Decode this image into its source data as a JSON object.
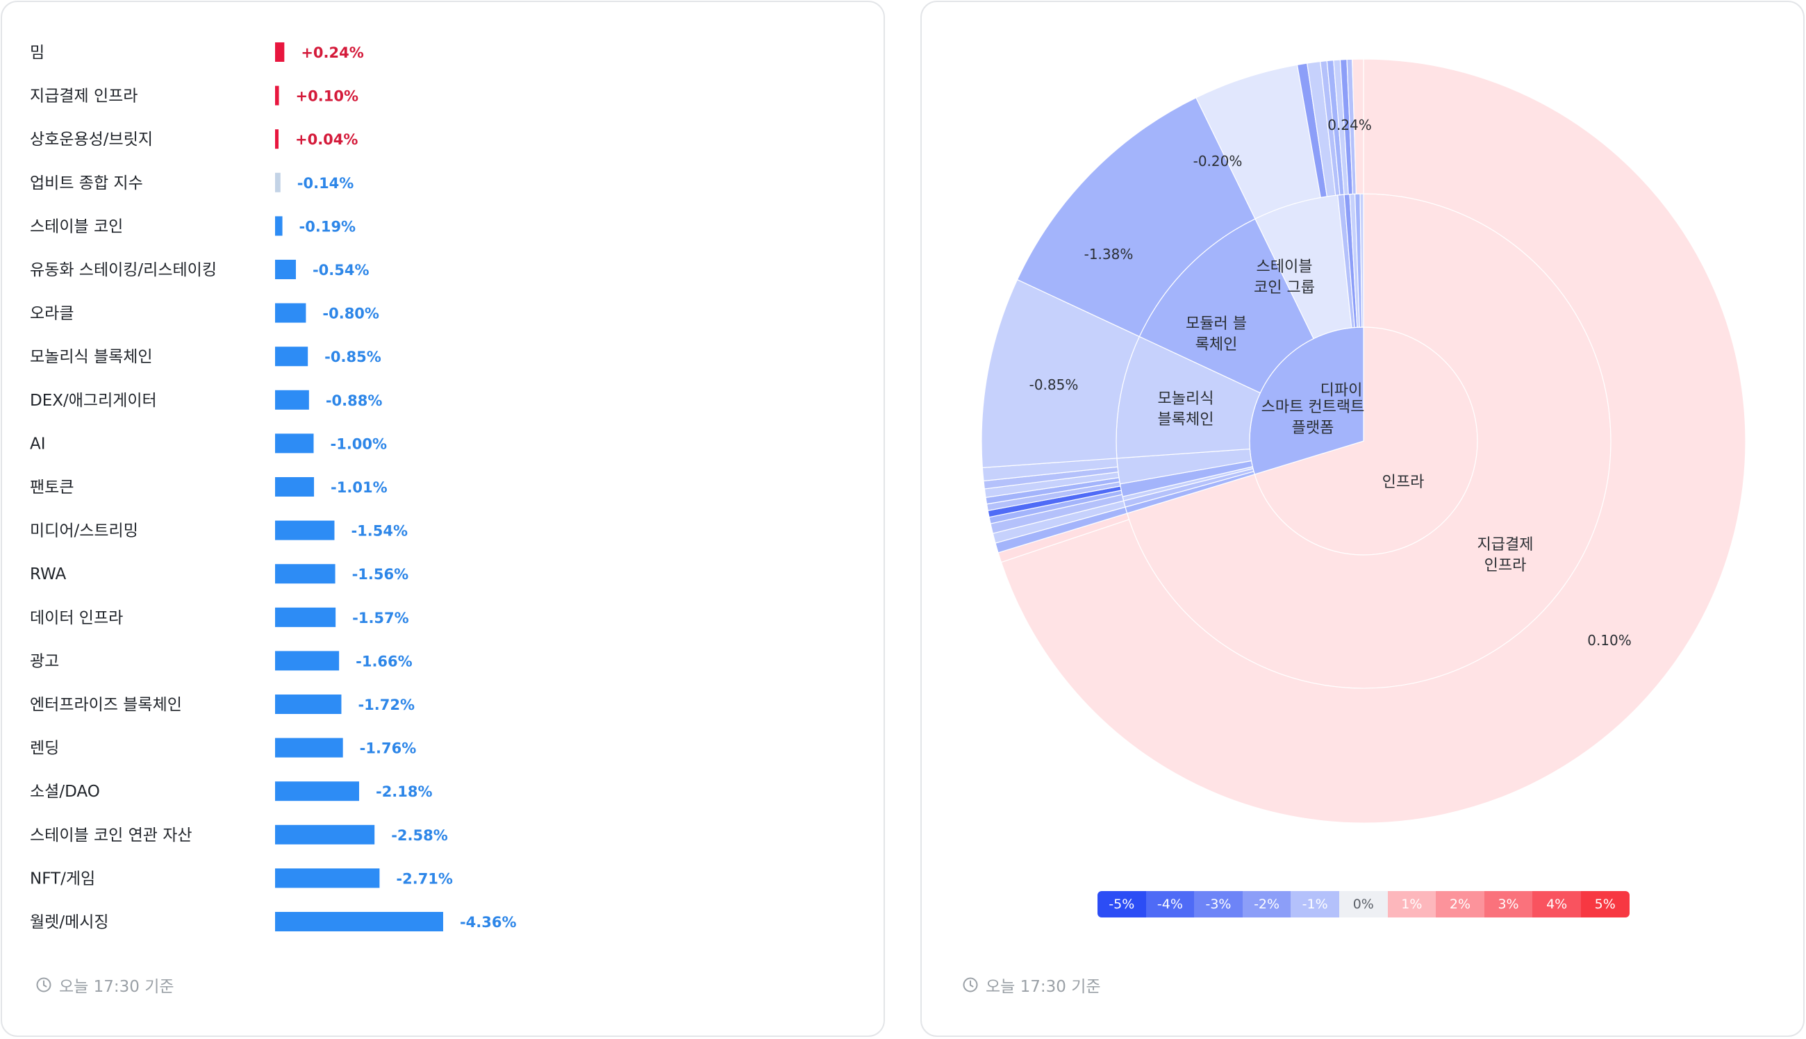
{
  "chart_data": [
    {
      "type": "bar",
      "orientation": "horizontal",
      "categories": [
        "밈",
        "지급결제 인프라",
        "상호운용성/브릿지",
        "업비트 종합 지수",
        "스테이블 코인",
        "유동화 스테이킹/리스테이킹",
        "오라클",
        "모놀리식 블록체인",
        "DEX/애그리게이터",
        "AI",
        "팬토큰",
        "미디어/스트리밍",
        "RWA",
        "데이터 인프라",
        "광고",
        "엔터프라이즈 블록체인",
        "렌딩",
        "소셜/DAO",
        "스테이블 코인 연관 자산",
        "NFT/게임",
        "월렛/메시징"
      ],
      "values": [
        0.24,
        0.1,
        0.04,
        -0.14,
        -0.19,
        -0.54,
        -0.8,
        -0.85,
        -0.88,
        -1.0,
        -1.01,
        -1.54,
        -1.56,
        -1.57,
        -1.66,
        -1.72,
        -1.76,
        -2.18,
        -2.58,
        -2.71,
        -4.36
      ],
      "value_labels": [
        "+0.24%",
        "+0.10%",
        "+0.04%",
        "-0.14%",
        "-0.19%",
        "-0.54%",
        "-0.80%",
        "-0.85%",
        "-0.88%",
        "-1.00%",
        "-1.01%",
        "-1.54%",
        "-1.56%",
        "-1.57%",
        "-1.66%",
        "-1.72%",
        "-1.76%",
        "-2.18%",
        "-2.58%",
        "-2.71%",
        "-4.36%"
      ],
      "colors": {
        "positive": "#e8163e",
        "negative": "#2d8cf5",
        "index": "#c3d3e6",
        "positive_text": "#d41a3a",
        "negative_text": "#2d86e8"
      }
    },
    {
      "type": "sunburst",
      "inner_ring": [
        {
          "name": "인프라",
          "share": 0.87,
          "color": "#ffe3e5"
        },
        {
          "name": "스마트 컨트랙트 플랫폼",
          "share": 0.13,
          "color": "#a3b4fb"
        }
      ],
      "middle_ring": [
        {
          "name": "지급결제 인프라",
          "parent": "인프라",
          "color": "#ffe3e5"
        },
        {
          "name": "모놀리식 블록체인",
          "parent": "스마트 컨트랙트 플랫폼",
          "color": "#c6d1fc"
        },
        {
          "name": "모듈러 블록체인",
          "parent": "스마트 컨트랙트 플랫폼",
          "color": "#a3b4fb"
        },
        {
          "name": "스테이블 코인 그룹",
          "parent": "스마트 컨트랙트 플랫폼",
          "color": "#e1e7fd"
        },
        {
          "name": "디파이",
          "parent": "스마트 컨트랙트 플랫폼",
          "color": "#c6d1fc"
        }
      ],
      "outer_value_labels": [
        "0.10%",
        "-0.85%",
        "-1.38%",
        "-0.20%",
        "0.24%"
      ],
      "legend": {
        "labels": [
          "-5%",
          "-4%",
          "-3%",
          "-2%",
          "-1%",
          "0%",
          "1%",
          "2%",
          "3%",
          "4%",
          "5%"
        ],
        "colors": [
          "#2c4df5",
          "#4f6bf6",
          "#6d84f7",
          "#8c9ef8",
          "#b4c1fb",
          "#eef0f4",
          "#fdb7bc",
          "#fc939b",
          "#fa727c",
          "#f9535f",
          "#f73842"
        ]
      }
    }
  ],
  "footer_left": "오늘 17:30 기준",
  "footer_right": "오늘 17:30 기준"
}
